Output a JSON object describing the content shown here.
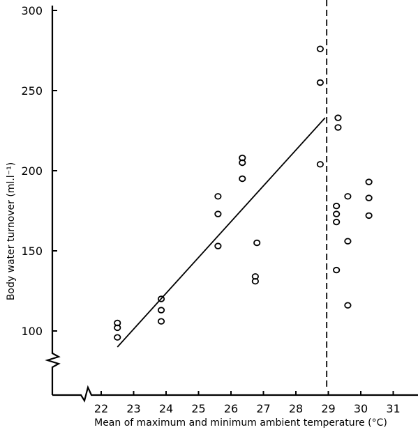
{
  "chart_data": {
    "type": "scatter",
    "xlabel": "Mean of maximum and minimum ambient temperature (°C)",
    "ylabel": "Body water turnover (ml.l⁻¹)",
    "x_ticks": [
      "22",
      "23",
      "24",
      "25",
      "26",
      "27",
      "28",
      "29",
      "30",
      "31"
    ],
    "y_ticks": [
      100,
      150,
      200,
      250,
      300
    ],
    "ylim": [
      100,
      300
    ],
    "grid": false,
    "axis_breaks": [
      "x",
      "y"
    ],
    "points": [
      {
        "x": 22.5,
        "y": 105
      },
      {
        "x": 22.5,
        "y": 102
      },
      {
        "x": 22.5,
        "y": 96
      },
      {
        "x": 23.85,
        "y": 120
      },
      {
        "x": 23.85,
        "y": 113
      },
      {
        "x": 23.85,
        "y": 106
      },
      {
        "x": 25.6,
        "y": 184
      },
      {
        "x": 25.6,
        "y": 173
      },
      {
        "x": 25.6,
        "y": 153
      },
      {
        "x": 26.35,
        "y": 208
      },
      {
        "x": 26.35,
        "y": 205
      },
      {
        "x": 26.35,
        "y": 195
      },
      {
        "x": 26.8,
        "y": 155
      },
      {
        "x": 26.75,
        "y": 134
      },
      {
        "x": 26.75,
        "y": 131
      },
      {
        "x": 28.75,
        "y": 276
      },
      {
        "x": 28.75,
        "y": 255
      },
      {
        "x": 28.75,
        "y": 204
      },
      {
        "x": 29.3,
        "y": 233
      },
      {
        "x": 29.3,
        "y": 227
      },
      {
        "x": 29.25,
        "y": 178
      },
      {
        "x": 29.25,
        "y": 173
      },
      {
        "x": 29.25,
        "y": 168
      },
      {
        "x": 29.25,
        "y": 138
      },
      {
        "x": 29.6,
        "y": 184
      },
      {
        "x": 29.6,
        "y": 156
      },
      {
        "x": 29.6,
        "y": 116
      },
      {
        "x": 30.25,
        "y": 193
      },
      {
        "x": 30.25,
        "y": 183
      },
      {
        "x": 30.25,
        "y": 172
      }
    ],
    "fit_line": {
      "x": [
        22.5,
        28.9
      ],
      "y": [
        90,
        233
      ]
    },
    "reference_line_x": 28.95
  }
}
